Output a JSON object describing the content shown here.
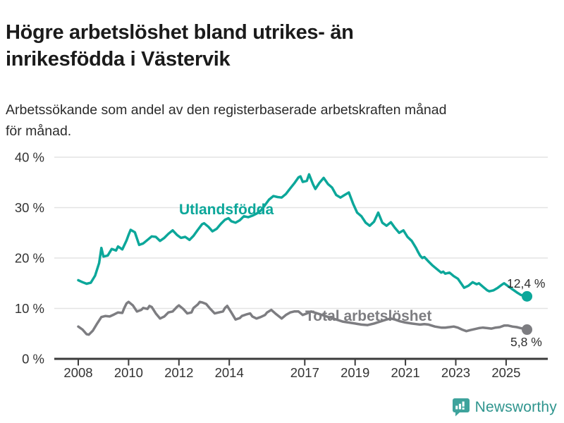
{
  "header": {
    "title": "Högre arbetslöshet bland utrikes- än inrikesfödda i Västervik",
    "title_lines": [
      "Högre arbetslöshet bland utrikes- än",
      "inrikesfödda i Västervik"
    ],
    "subtitle_lines": [
      "Arbetssökande som andel av den registerbaserade arbetskraften månad",
      "för månad."
    ]
  },
  "footer": {
    "brand": "Newsworthy",
    "brand_color": "#2f958e",
    "icon_color": "#3ea39c"
  },
  "colors": {
    "series_foreign": "#0ca79a",
    "series_total": "#7d7d81",
    "gridline": "#e3e3e3",
    "axis": "#3b3b3b",
    "tick_text": "#333333"
  },
  "chart_data": {
    "type": "line",
    "title": "Högre arbetslöshet bland utrikes- än inrikesfödda i Västervik",
    "xlabel": "",
    "ylabel": "",
    "ylim": [
      0,
      40
    ],
    "grid": "horizontal",
    "legend_position": "inline-labels",
    "yticks": [
      {
        "v": 40,
        "label": "40 %"
      },
      {
        "v": 30,
        "label": "30 %"
      },
      {
        "v": 20,
        "label": "20 %"
      },
      {
        "v": 10,
        "label": "10 %"
      },
      {
        "v": 0,
        "label": "0 %"
      }
    ],
    "xticks": [
      {
        "v": 2008,
        "label": "2008"
      },
      {
        "v": 2010,
        "label": "2010"
      },
      {
        "v": 2012,
        "label": "2012"
      },
      {
        "v": 2014,
        "label": "2014"
      },
      {
        "v": 2017,
        "label": "2017"
      },
      {
        "v": 2019,
        "label": "2019"
      },
      {
        "v": 2021,
        "label": "2021"
      },
      {
        "v": 2023,
        "label": "2023"
      },
      {
        "v": 2025,
        "label": "2025"
      }
    ],
    "series": [
      {
        "name": "Utlandsfödda",
        "color": "#0ca79a",
        "end_label": "12,4 %",
        "end_value": 12.4,
        "points": [
          [
            2008.0,
            15.6
          ],
          [
            2008.17,
            15.2
          ],
          [
            2008.33,
            14.9
          ],
          [
            2008.5,
            15.1
          ],
          [
            2008.67,
            16.5
          ],
          [
            2008.83,
            19.0
          ],
          [
            2008.92,
            22.0
          ],
          [
            2009.0,
            20.3
          ],
          [
            2009.17,
            20.5
          ],
          [
            2009.33,
            21.8
          ],
          [
            2009.5,
            21.5
          ],
          [
            2009.58,
            22.3
          ],
          [
            2009.75,
            21.7
          ],
          [
            2009.92,
            23.5
          ],
          [
            2010.0,
            24.6
          ],
          [
            2010.08,
            25.6
          ],
          [
            2010.25,
            25.1
          ],
          [
            2010.42,
            22.6
          ],
          [
            2010.58,
            22.9
          ],
          [
            2010.75,
            23.6
          ],
          [
            2010.92,
            24.3
          ],
          [
            2011.08,
            24.2
          ],
          [
            2011.25,
            23.4
          ],
          [
            2011.42,
            24.0
          ],
          [
            2011.58,
            24.8
          ],
          [
            2011.75,
            25.5
          ],
          [
            2011.92,
            24.6
          ],
          [
            2012.08,
            24.0
          ],
          [
            2012.25,
            24.2
          ],
          [
            2012.42,
            23.6
          ],
          [
            2012.58,
            24.4
          ],
          [
            2012.75,
            25.6
          ],
          [
            2012.92,
            26.7
          ],
          [
            2013.0,
            26.9
          ],
          [
            2013.17,
            26.2
          ],
          [
            2013.33,
            25.3
          ],
          [
            2013.5,
            25.8
          ],
          [
            2013.67,
            26.8
          ],
          [
            2013.83,
            27.6
          ],
          [
            2013.97,
            27.9
          ],
          [
            2014.08,
            27.3
          ],
          [
            2014.25,
            27.0
          ],
          [
            2014.42,
            27.5
          ],
          [
            2014.58,
            28.3
          ],
          [
            2014.75,
            28.1
          ],
          [
            2014.92,
            28.4
          ],
          [
            2015.08,
            28.8
          ],
          [
            2015.25,
            29.4
          ],
          [
            2015.42,
            30.5
          ],
          [
            2015.58,
            31.6
          ],
          [
            2015.75,
            32.3
          ],
          [
            2015.92,
            32.1
          ],
          [
            2016.08,
            32.0
          ],
          [
            2016.25,
            32.7
          ],
          [
            2016.42,
            33.8
          ],
          [
            2016.58,
            34.8
          ],
          [
            2016.75,
            36.0
          ],
          [
            2016.83,
            36.2
          ],
          [
            2016.92,
            35.1
          ],
          [
            2017.08,
            35.3
          ],
          [
            2017.17,
            36.6
          ],
          [
            2017.33,
            34.6
          ],
          [
            2017.42,
            33.7
          ],
          [
            2017.58,
            34.9
          ],
          [
            2017.75,
            35.9
          ],
          [
            2017.92,
            34.7
          ],
          [
            2018.08,
            34.0
          ],
          [
            2018.25,
            32.5
          ],
          [
            2018.42,
            32.0
          ],
          [
            2018.58,
            32.5
          ],
          [
            2018.75,
            33.0
          ],
          [
            2018.92,
            30.8
          ],
          [
            2019.08,
            29.0
          ],
          [
            2019.25,
            28.3
          ],
          [
            2019.42,
            27.0
          ],
          [
            2019.58,
            26.4
          ],
          [
            2019.75,
            27.2
          ],
          [
            2019.92,
            29.0
          ],
          [
            2020.08,
            27.0
          ],
          [
            2020.25,
            26.4
          ],
          [
            2020.42,
            27.1
          ],
          [
            2020.58,
            26.0
          ],
          [
            2020.75,
            25.0
          ],
          [
            2020.92,
            25.5
          ],
          [
            2021.08,
            24.2
          ],
          [
            2021.25,
            23.4
          ],
          [
            2021.42,
            22.0
          ],
          [
            2021.5,
            21.2
          ],
          [
            2021.58,
            20.5
          ],
          [
            2021.67,
            20.0
          ],
          [
            2021.75,
            20.2
          ],
          [
            2021.92,
            19.3
          ],
          [
            2022.08,
            18.5
          ],
          [
            2022.25,
            17.8
          ],
          [
            2022.42,
            17.1
          ],
          [
            2022.5,
            17.3
          ],
          [
            2022.58,
            16.9
          ],
          [
            2022.75,
            17.1
          ],
          [
            2022.92,
            16.4
          ],
          [
            2023.08,
            15.9
          ],
          [
            2023.25,
            14.7
          ],
          [
            2023.33,
            14.1
          ],
          [
            2023.5,
            14.5
          ],
          [
            2023.67,
            15.2
          ],
          [
            2023.83,
            14.8
          ],
          [
            2023.92,
            15.0
          ],
          [
            2024.08,
            14.3
          ],
          [
            2024.25,
            13.6
          ],
          [
            2024.33,
            13.4
          ],
          [
            2024.5,
            13.6
          ],
          [
            2024.67,
            14.1
          ],
          [
            2024.83,
            14.7
          ],
          [
            2024.92,
            15.0
          ],
          [
            2025.08,
            14.4
          ],
          [
            2025.25,
            13.8
          ],
          [
            2025.42,
            13.2
          ],
          [
            2025.58,
            12.7
          ],
          [
            2025.75,
            12.4
          ],
          [
            2025.83,
            12.4
          ]
        ]
      },
      {
        "name": "Total arbetslöshet",
        "color": "#7d7d81",
        "end_label": "5,8 %",
        "end_value": 5.8,
        "points": [
          [
            2008.0,
            6.4
          ],
          [
            2008.17,
            5.8
          ],
          [
            2008.33,
            4.9
          ],
          [
            2008.42,
            4.8
          ],
          [
            2008.58,
            5.6
          ],
          [
            2008.75,
            7.0
          ],
          [
            2008.92,
            8.3
          ],
          [
            2009.08,
            8.5
          ],
          [
            2009.25,
            8.4
          ],
          [
            2009.42,
            8.8
          ],
          [
            2009.58,
            9.2
          ],
          [
            2009.75,
            9.1
          ],
          [
            2009.83,
            10.1
          ],
          [
            2009.92,
            11.0
          ],
          [
            2010.0,
            11.3
          ],
          [
            2010.17,
            10.6
          ],
          [
            2010.33,
            9.4
          ],
          [
            2010.5,
            9.7
          ],
          [
            2010.58,
            10.1
          ],
          [
            2010.75,
            9.9
          ],
          [
            2010.83,
            10.5
          ],
          [
            2010.92,
            10.3
          ],
          [
            2011.08,
            9.0
          ],
          [
            2011.25,
            8.0
          ],
          [
            2011.42,
            8.4
          ],
          [
            2011.58,
            9.2
          ],
          [
            2011.75,
            9.4
          ],
          [
            2011.92,
            10.3
          ],
          [
            2012.0,
            10.6
          ],
          [
            2012.17,
            9.9
          ],
          [
            2012.33,
            9.0
          ],
          [
            2012.5,
            9.2
          ],
          [
            2012.58,
            10.1
          ],
          [
            2012.75,
            10.8
          ],
          [
            2012.83,
            11.3
          ],
          [
            2012.92,
            11.2
          ],
          [
            2013.08,
            10.9
          ],
          [
            2013.25,
            9.9
          ],
          [
            2013.42,
            9.0
          ],
          [
            2013.58,
            9.2
          ],
          [
            2013.75,
            9.4
          ],
          [
            2013.83,
            10.1
          ],
          [
            2013.92,
            10.5
          ],
          [
            2014.08,
            9.2
          ],
          [
            2014.25,
            7.8
          ],
          [
            2014.42,
            8.1
          ],
          [
            2014.5,
            8.5
          ],
          [
            2014.67,
            8.8
          ],
          [
            2014.83,
            9.0
          ],
          [
            2014.92,
            8.4
          ],
          [
            2015.08,
            8.0
          ],
          [
            2015.25,
            8.3
          ],
          [
            2015.42,
            8.7
          ],
          [
            2015.5,
            9.2
          ],
          [
            2015.67,
            9.7
          ],
          [
            2015.83,
            9.0
          ],
          [
            2016.08,
            8.0
          ],
          [
            2016.25,
            8.7
          ],
          [
            2016.42,
            9.2
          ],
          [
            2016.58,
            9.4
          ],
          [
            2016.75,
            9.4
          ],
          [
            2016.92,
            8.7
          ],
          [
            2017.08,
            9.0
          ],
          [
            2017.25,
            9.4
          ],
          [
            2017.5,
            9.0
          ],
          [
            2017.75,
            8.6
          ],
          [
            2018.0,
            8.2
          ],
          [
            2018.25,
            7.8
          ],
          [
            2018.5,
            7.4
          ],
          [
            2018.75,
            7.2
          ],
          [
            2019.0,
            7.0
          ],
          [
            2019.25,
            6.8
          ],
          [
            2019.5,
            6.7
          ],
          [
            2019.75,
            7.0
          ],
          [
            2020.0,
            7.4
          ],
          [
            2020.25,
            7.8
          ],
          [
            2020.42,
            8.0
          ],
          [
            2020.58,
            7.8
          ],
          [
            2020.75,
            7.5
          ],
          [
            2021.0,
            7.2
          ],
          [
            2021.25,
            7.0
          ],
          [
            2021.42,
            6.9
          ],
          [
            2021.58,
            6.8
          ],
          [
            2021.75,
            6.9
          ],
          [
            2021.92,
            6.8
          ],
          [
            2022.17,
            6.4
          ],
          [
            2022.42,
            6.2
          ],
          [
            2022.58,
            6.2
          ],
          [
            2022.75,
            6.3
          ],
          [
            2022.92,
            6.4
          ],
          [
            2023.08,
            6.2
          ],
          [
            2023.25,
            5.8
          ],
          [
            2023.42,
            5.5
          ],
          [
            2023.58,
            5.7
          ],
          [
            2023.75,
            5.9
          ],
          [
            2023.92,
            6.1
          ],
          [
            2024.08,
            6.2
          ],
          [
            2024.25,
            6.1
          ],
          [
            2024.42,
            6.0
          ],
          [
            2024.58,
            6.2
          ],
          [
            2024.75,
            6.3
          ],
          [
            2024.92,
            6.6
          ],
          [
            2025.08,
            6.6
          ],
          [
            2025.25,
            6.4
          ],
          [
            2025.42,
            6.3
          ],
          [
            2025.58,
            6.1
          ],
          [
            2025.75,
            5.9
          ],
          [
            2025.83,
            5.8
          ]
        ]
      }
    ]
  }
}
